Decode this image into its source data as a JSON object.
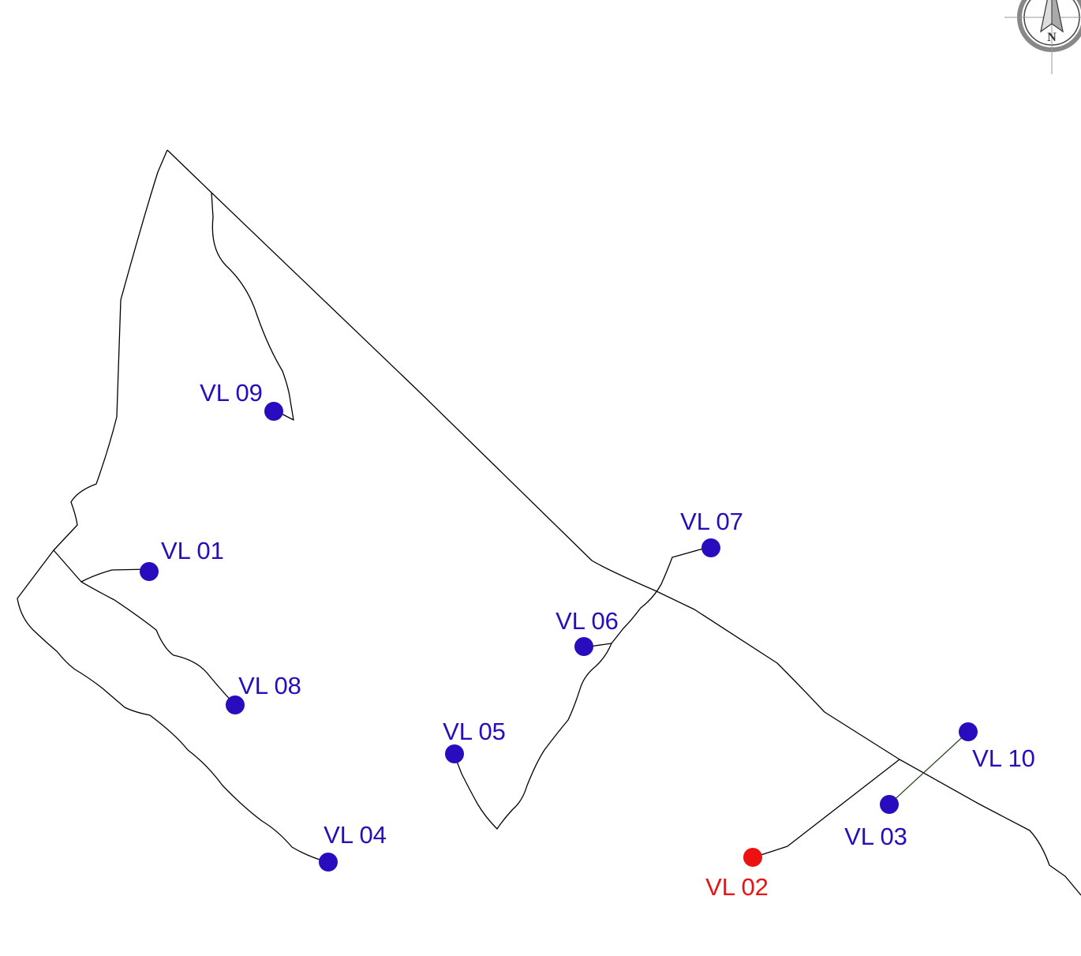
{
  "map": {
    "compass": {
      "letter": "N",
      "icon": "north-arrow-icon"
    },
    "colors": {
      "site": "#2a0cbf",
      "site_highlight": "#ee1111",
      "line": "#000000",
      "link": "#2d4a1e"
    },
    "sites": [
      {
        "label": "VL 01",
        "highlight": false
      },
      {
        "label": "VL 02",
        "highlight": true
      },
      {
        "label": "VL 03",
        "highlight": false
      },
      {
        "label": "VL 04",
        "highlight": false
      },
      {
        "label": "VL 05",
        "highlight": false
      },
      {
        "label": "VL 06",
        "highlight": false
      },
      {
        "label": "VL 07",
        "highlight": false
      },
      {
        "label": "VL 08",
        "highlight": false
      },
      {
        "label": "VL 09",
        "highlight": false
      },
      {
        "label": "VL 10",
        "highlight": false
      }
    ]
  }
}
